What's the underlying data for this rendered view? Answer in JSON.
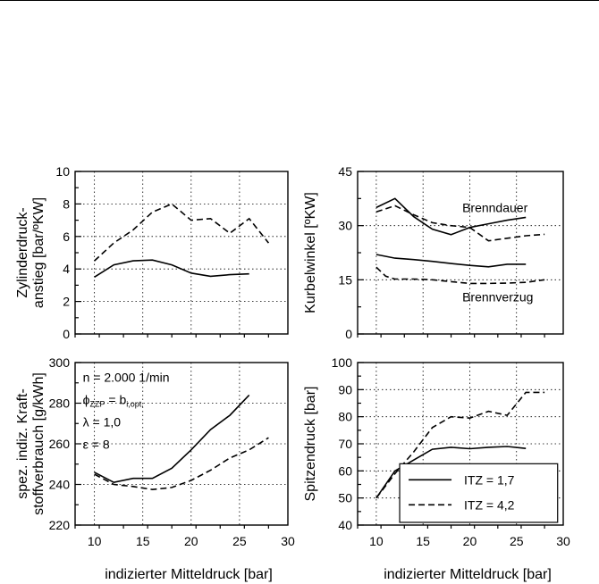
{
  "chart_data": [
    {
      "type": "line",
      "xlabel": "",
      "ylabel_lines": [
        "Zylinderdruck-",
        "anstieg [bar/ºKW]"
      ],
      "xlim": [
        8,
        30
      ],
      "ylim": [
        0,
        10
      ],
      "xticks": [
        10,
        15,
        20,
        25,
        30
      ],
      "yticks": [
        0,
        2,
        4,
        6,
        8,
        10
      ],
      "show_xticklabels": false,
      "grid": true,
      "series": [
        {
          "style": "solid",
          "x": [
            10,
            12,
            14,
            16,
            18,
            20,
            22,
            24,
            26
          ],
          "y": [
            3.5,
            4.25,
            4.5,
            4.55,
            4.25,
            3.75,
            3.55,
            3.65,
            3.7
          ]
        },
        {
          "style": "dashed",
          "x": [
            10,
            12,
            14,
            16,
            18,
            20,
            22,
            24,
            26,
            28
          ],
          "y": [
            4.5,
            5.6,
            6.4,
            7.5,
            8.0,
            7.0,
            7.1,
            6.2,
            7.1,
            5.6
          ]
        }
      ],
      "annotations": []
    },
    {
      "type": "line",
      "xlabel": "",
      "ylabel_lines": [
        "Kurbelwinkel [ºKW]"
      ],
      "xlim": [
        8,
        30
      ],
      "ylim": [
        0,
        45
      ],
      "xticks": [
        10,
        15,
        20,
        25,
        30
      ],
      "yticks": [
        0,
        15,
        30,
        45
      ],
      "show_xticklabels": false,
      "grid": true,
      "series": [
        {
          "style": "solid",
          "x": [
            10,
            12,
            14,
            16,
            18,
            20,
            22,
            24,
            26
          ],
          "y": [
            35.0,
            37.5,
            32.5,
            29.0,
            27.5,
            29.5,
            30.5,
            31.5,
            32.3
          ]
        },
        {
          "style": "dashed",
          "x": [
            10,
            12,
            14,
            16,
            18,
            20,
            22,
            24,
            26,
            28
          ],
          "y": [
            33.8,
            35.5,
            33.0,
            30.8,
            30.0,
            29.5,
            25.8,
            26.5,
            27.2,
            27.6
          ]
        },
        {
          "style": "solid",
          "x": [
            10,
            12,
            14,
            16,
            18,
            20,
            22,
            24,
            26
          ],
          "y": [
            22.0,
            21.0,
            20.6,
            20.1,
            19.5,
            19.0,
            18.6,
            19.3,
            19.3
          ]
        },
        {
          "style": "dashed",
          "x": [
            10,
            11,
            12,
            14,
            16,
            18,
            20,
            22,
            24,
            26,
            28
          ],
          "y": [
            18.5,
            16.0,
            15.2,
            15.2,
            15.0,
            14.5,
            14.0,
            14.0,
            14.1,
            14.3,
            15.0
          ]
        }
      ],
      "annotations": [
        {
          "text": "Brenndauer",
          "x": 19.2,
          "y": 33.8
        },
        {
          "text": "Brennverzug",
          "x": 19.2,
          "y": 9.0
        }
      ]
    },
    {
      "type": "line",
      "xlabel": "indizierter Mitteldruck [bar]",
      "ylabel_lines": [
        "spez. indiz. Kraft-",
        "stoffverbrauch [g/kWh]"
      ],
      "xlim": [
        8,
        30
      ],
      "ylim": [
        220,
        300
      ],
      "xticks": [
        10,
        15,
        20,
        25,
        30
      ],
      "yticks": [
        220,
        240,
        260,
        280,
        300
      ],
      "show_xticklabels": true,
      "grid": true,
      "series": [
        {
          "style": "solid",
          "x": [
            10,
            12,
            14,
            16,
            18,
            20,
            22,
            24,
            26
          ],
          "y": [
            246.0,
            241.0,
            243.0,
            243.0,
            248.0,
            257.0,
            267.0,
            274.0,
            284.0
          ]
        },
        {
          "style": "dashed",
          "x": [
            10,
            12,
            14,
            16,
            18,
            20,
            22,
            24,
            26,
            28
          ],
          "y": [
            245.0,
            240.0,
            239.0,
            237.5,
            238.5,
            242.0,
            247.0,
            253.0,
            257.0,
            263.0
          ]
        }
      ],
      "annotations": [
        {
          "text": "n = 2.000 1/min",
          "x": 8.8,
          "y": 290.5
        },
        {
          "text": "ϕ",
          "x": 8.8,
          "y": 279.5,
          "sub": "ZZP",
          "rest": " = b",
          "sub2": "i,opt."
        },
        {
          "text": "λ = 1,0",
          "x": 8.8,
          "y": 268.5
        },
        {
          "text": "ε = 8",
          "x": 8.8,
          "y": 257.5
        }
      ]
    },
    {
      "type": "line",
      "xlabel": "indizierter Mitteldruck [bar]",
      "ylabel_lines": [
        "Spitzendruck [bar]"
      ],
      "xlim": [
        8,
        30
      ],
      "ylim": [
        40,
        100
      ],
      "xticks": [
        10,
        15,
        20,
        25,
        30
      ],
      "yticks": [
        40,
        50,
        60,
        70,
        80,
        90,
        100
      ],
      "show_xticklabels": true,
      "grid": true,
      "series": [
        {
          "style": "solid",
          "name": "ITZ = 1,7",
          "x": [
            10,
            12,
            14,
            16,
            18,
            20,
            22,
            24,
            26
          ],
          "y": [
            50.0,
            60.0,
            64.0,
            68.0,
            68.7,
            68.2,
            68.7,
            69.0,
            68.3
          ]
        },
        {
          "style": "dashed",
          "name": "ITZ = 4,2",
          "x": [
            10,
            12,
            14,
            16,
            18,
            20,
            22,
            24,
            26,
            28
          ],
          "y": [
            50.0,
            59.0,
            67.0,
            76.0,
            80.0,
            79.5,
            82.0,
            80.5,
            89.0,
            89.0
          ]
        }
      ],
      "legend": {
        "position": "bottom-right",
        "entries": [
          "ITZ = 1,7",
          "ITZ = 4,2"
        ]
      },
      "annotations": []
    }
  ]
}
